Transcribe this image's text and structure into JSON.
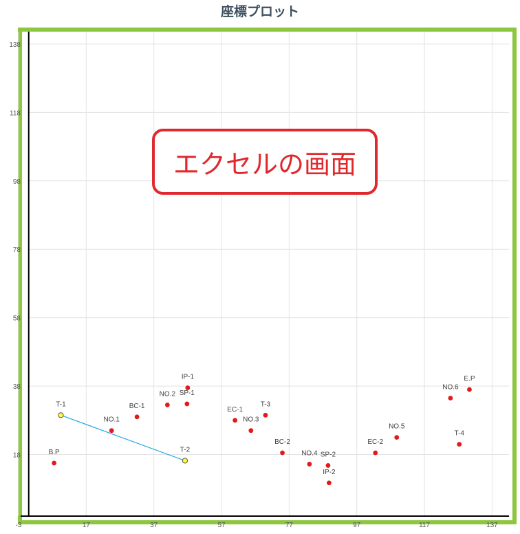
{
  "chart_data": {
    "type": "scatter",
    "title": "座標プロット",
    "xlim": [
      -3,
      142
    ],
    "ylim": [
      0,
      142
    ],
    "x_ticks": [
      -3,
      17,
      37,
      57,
      77,
      97,
      117,
      137
    ],
    "y_ticks": [
      18,
      38,
      58,
      78,
      98,
      118,
      138
    ],
    "grid": true,
    "points": [
      {
        "label": "B.P",
        "x": 7.5,
        "y": 15.5
      },
      {
        "label": "T-1",
        "x": 9.5,
        "y": 29.5
      },
      {
        "label": "NO.1",
        "x": 24.5,
        "y": 25.0
      },
      {
        "label": "BC-1",
        "x": 32.0,
        "y": 29.0
      },
      {
        "label": "NO.2",
        "x": 41.0,
        "y": 32.5
      },
      {
        "label": "IP-1",
        "x": 47.0,
        "y": 37.5
      },
      {
        "label": "SP-1",
        "x": 46.8,
        "y": 32.8
      },
      {
        "label": "T-2",
        "x": 46.2,
        "y": 16.2
      },
      {
        "label": "EC-1",
        "x": 61.0,
        "y": 28.0
      },
      {
        "label": "NO.3",
        "x": 65.7,
        "y": 25.0
      },
      {
        "label": "T-3",
        "x": 70.0,
        "y": 29.5
      },
      {
        "label": "BC-2",
        "x": 75.0,
        "y": 18.5
      },
      {
        "label": "NO.4",
        "x": 83.0,
        "y": 15.2
      },
      {
        "label": "SP-2",
        "x": 88.5,
        "y": 14.8
      },
      {
        "label": "IP-2",
        "x": 88.8,
        "y": 9.7
      },
      {
        "label": "EC-2",
        "x": 102.5,
        "y": 18.5
      },
      {
        "label": "NO.5",
        "x": 108.8,
        "y": 23.0
      },
      {
        "label": "NO.6",
        "x": 124.7,
        "y": 34.5
      },
      {
        "label": "E.P",
        "x": 130.3,
        "y": 37.0
      },
      {
        "label": "T-4",
        "x": 127.3,
        "y": 21.0
      }
    ],
    "line_segment": {
      "from": "T-1",
      "to": "T-2"
    },
    "highlighted_points": [
      "T-1",
      "T-2"
    ],
    "colors": {
      "point": "#e31a1c",
      "highlight_fill": "#ffff33",
      "highlight_stroke": "#555555",
      "line": "#26a9e0",
      "frame": "#8dc63f",
      "grid": "#e3e3e3",
      "axis": "#000000"
    }
  },
  "callout": {
    "text": "エクセルの画面",
    "color": "#e0282e"
  }
}
